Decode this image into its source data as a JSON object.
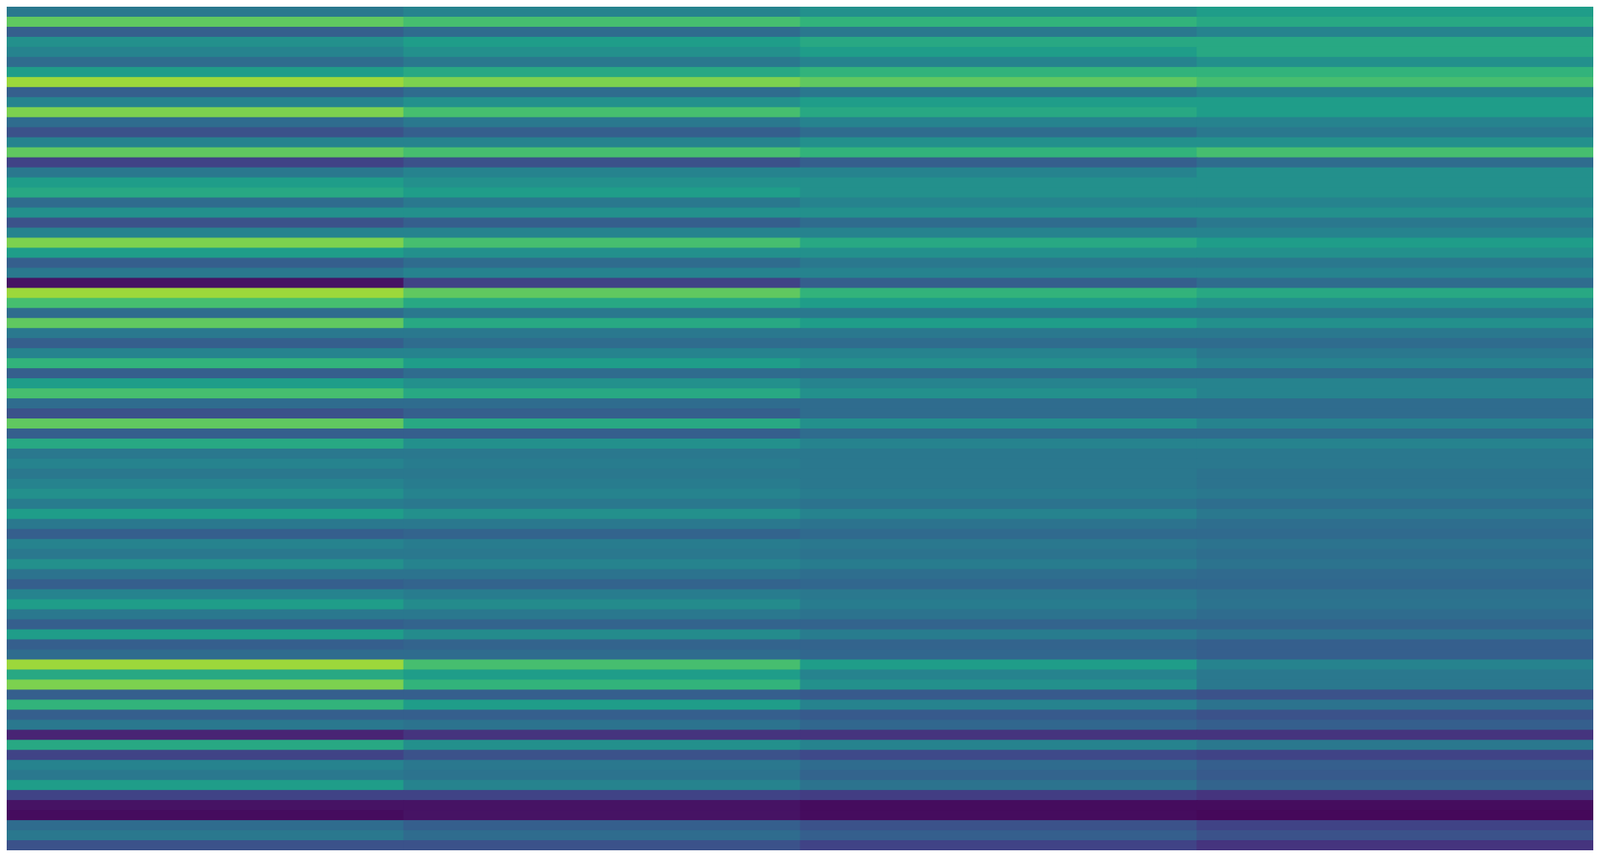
{
  "chart_data": {
    "type": "heatmap",
    "tick_labels": false,
    "zlim": [
      0,
      1
    ],
    "cells": [
      [
        0.4,
        0.45,
        0.5,
        0.55
      ],
      [
        0.75,
        0.7,
        0.65,
        0.6
      ],
      [
        0.3,
        0.35,
        0.4,
        0.45
      ],
      [
        0.5,
        0.55,
        0.6,
        0.6
      ],
      [
        0.45,
        0.5,
        0.55,
        0.6
      ],
      [
        0.35,
        0.4,
        0.45,
        0.5
      ],
      [
        0.55,
        0.6,
        0.65,
        0.65
      ],
      [
        0.85,
        0.8,
        0.75,
        0.7
      ],
      [
        0.3,
        0.35,
        0.4,
        0.45
      ],
      [
        0.45,
        0.5,
        0.55,
        0.55
      ],
      [
        0.8,
        0.7,
        0.6,
        0.55
      ],
      [
        0.35,
        0.4,
        0.45,
        0.45
      ],
      [
        0.25,
        0.3,
        0.35,
        0.4
      ],
      [
        0.45,
        0.45,
        0.5,
        0.5
      ],
      [
        0.75,
        0.7,
        0.65,
        0.7
      ],
      [
        0.2,
        0.25,
        0.3,
        0.35
      ],
      [
        0.4,
        0.45,
        0.45,
        0.5
      ],
      [
        0.55,
        0.5,
        0.5,
        0.5
      ],
      [
        0.6,
        0.55,
        0.5,
        0.5
      ],
      [
        0.35,
        0.4,
        0.45,
        0.45
      ],
      [
        0.5,
        0.5,
        0.5,
        0.5
      ],
      [
        0.25,
        0.3,
        0.35,
        0.4
      ],
      [
        0.45,
        0.45,
        0.45,
        0.45
      ],
      [
        0.8,
        0.7,
        0.6,
        0.55
      ],
      [
        0.55,
        0.5,
        0.5,
        0.5
      ],
      [
        0.3,
        0.35,
        0.4,
        0.4
      ],
      [
        0.4,
        0.45,
        0.45,
        0.45
      ],
      [
        0.05,
        0.2,
        0.3,
        0.35
      ],
      [
        0.85,
        0.75,
        0.65,
        0.6
      ],
      [
        0.7,
        0.6,
        0.55,
        0.5
      ],
      [
        0.35,
        0.4,
        0.4,
        0.4
      ],
      [
        0.75,
        0.6,
        0.55,
        0.5
      ],
      [
        0.4,
        0.4,
        0.4,
        0.4
      ],
      [
        0.3,
        0.35,
        0.35,
        0.35
      ],
      [
        0.45,
        0.45,
        0.45,
        0.4
      ],
      [
        0.65,
        0.55,
        0.5,
        0.45
      ],
      [
        0.3,
        0.35,
        0.35,
        0.35
      ],
      [
        0.55,
        0.5,
        0.45,
        0.45
      ],
      [
        0.7,
        0.6,
        0.5,
        0.45
      ],
      [
        0.35,
        0.35,
        0.35,
        0.35
      ],
      [
        0.25,
        0.3,
        0.35,
        0.35
      ],
      [
        0.75,
        0.6,
        0.5,
        0.45
      ],
      [
        0.3,
        0.3,
        0.35,
        0.35
      ],
      [
        0.6,
        0.5,
        0.45,
        0.45
      ],
      [
        0.4,
        0.4,
        0.4,
        0.4
      ],
      [
        0.45,
        0.42,
        0.4,
        0.4
      ],
      [
        0.4,
        0.4,
        0.4,
        0.38
      ],
      [
        0.45,
        0.42,
        0.4,
        0.38
      ],
      [
        0.5,
        0.45,
        0.42,
        0.4
      ],
      [
        0.42,
        0.4,
        0.38,
        0.36
      ],
      [
        0.55,
        0.5,
        0.45,
        0.4
      ],
      [
        0.4,
        0.4,
        0.38,
        0.36
      ],
      [
        0.3,
        0.32,
        0.34,
        0.34
      ],
      [
        0.45,
        0.42,
        0.4,
        0.38
      ],
      [
        0.4,
        0.4,
        0.38,
        0.36
      ],
      [
        0.5,
        0.45,
        0.42,
        0.38
      ],
      [
        0.38,
        0.38,
        0.36,
        0.34
      ],
      [
        0.3,
        0.32,
        0.33,
        0.33
      ],
      [
        0.45,
        0.42,
        0.4,
        0.37
      ],
      [
        0.55,
        0.48,
        0.42,
        0.38
      ],
      [
        0.4,
        0.4,
        0.38,
        0.35
      ],
      [
        0.3,
        0.32,
        0.32,
        0.32
      ],
      [
        0.55,
        0.48,
        0.42,
        0.38
      ],
      [
        0.3,
        0.32,
        0.32,
        0.3
      ],
      [
        0.35,
        0.35,
        0.33,
        0.3
      ],
      [
        0.85,
        0.7,
        0.55,
        0.45
      ],
      [
        0.6,
        0.55,
        0.45,
        0.4
      ],
      [
        0.8,
        0.65,
        0.5,
        0.4
      ],
      [
        0.3,
        0.3,
        0.28,
        0.25
      ],
      [
        0.65,
        0.55,
        0.45,
        0.38
      ],
      [
        0.3,
        0.3,
        0.28,
        0.25
      ],
      [
        0.4,
        0.38,
        0.33,
        0.3
      ],
      [
        0.1,
        0.15,
        0.15,
        0.15
      ],
      [
        0.6,
        0.5,
        0.45,
        0.4
      ],
      [
        0.2,
        0.25,
        0.22,
        0.2
      ],
      [
        0.45,
        0.4,
        0.35,
        0.3
      ],
      [
        0.4,
        0.38,
        0.32,
        0.28
      ],
      [
        0.55,
        0.45,
        0.38,
        0.32
      ],
      [
        0.2,
        0.2,
        0.18,
        0.15
      ],
      [
        0.05,
        0.05,
        0.03,
        0.03
      ],
      [
        0.03,
        0.05,
        0.03,
        0.02
      ],
      [
        0.35,
        0.3,
        0.25,
        0.2
      ],
      [
        0.4,
        0.35,
        0.3,
        0.25
      ],
      [
        0.25,
        0.25,
        0.2,
        0.15
      ]
    ]
  }
}
